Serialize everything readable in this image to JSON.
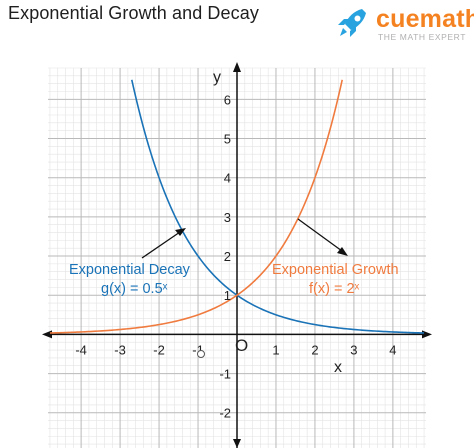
{
  "header": {
    "title": "Exponential Growth and Decay"
  },
  "brand": {
    "name": "cuemath",
    "tagline": "THE MATH EXPERT",
    "icon": "rocket-icon",
    "color": "#f58220",
    "icon_color": "#29a3e0"
  },
  "chart_data": {
    "type": "line",
    "title": "Exponential Growth and Decay",
    "xlabel": "x",
    "ylabel": "y",
    "xlim": [
      -4.85,
      4.85
    ],
    "ylim": [
      -2.9,
      6.8
    ],
    "grid": true,
    "x_ticks": [
      -4,
      -3,
      -2,
      -1,
      1,
      2,
      3,
      4
    ],
    "y_ticks": [
      -2,
      -1,
      1,
      2,
      3,
      4,
      5,
      6
    ],
    "origin_label": "O",
    "series": [
      {
        "name": "Exponential Decay",
        "formula": "g(x) = 0.5ˣ",
        "base": 0.5,
        "color": "#1a73b7",
        "x": [
          -2.7,
          -2,
          -1.585,
          -1,
          0,
          1,
          2,
          3,
          4,
          4.8
        ],
        "y": [
          6.5,
          4,
          3,
          2,
          1,
          0.5,
          0.25,
          0.125,
          0.0625,
          0.036
        ]
      },
      {
        "name": "Exponential Growth",
        "formula": "f(x) = 2ˣ",
        "base": 2,
        "color": "#f07b3f",
        "x": [
          -4.8,
          -4,
          -3,
          -2,
          -1,
          0,
          1,
          1.585,
          2,
          2.7
        ],
        "y": [
          0.036,
          0.0625,
          0.125,
          0.25,
          0.5,
          1,
          2,
          3,
          4,
          6.5
        ]
      }
    ],
    "annotations": [
      {
        "text": "Exponential Decay",
        "series": 0
      },
      {
        "text": "g(x) = 0.5ˣ",
        "series": 0
      },
      {
        "text": "Exponential Growth",
        "series": 1
      },
      {
        "text": "f(x) = 2ˣ",
        "series": 1
      }
    ],
    "colors": {
      "grid_minor": "#e3e3e3",
      "grid_major": "#b9b9b9",
      "axis": "#111111"
    }
  }
}
